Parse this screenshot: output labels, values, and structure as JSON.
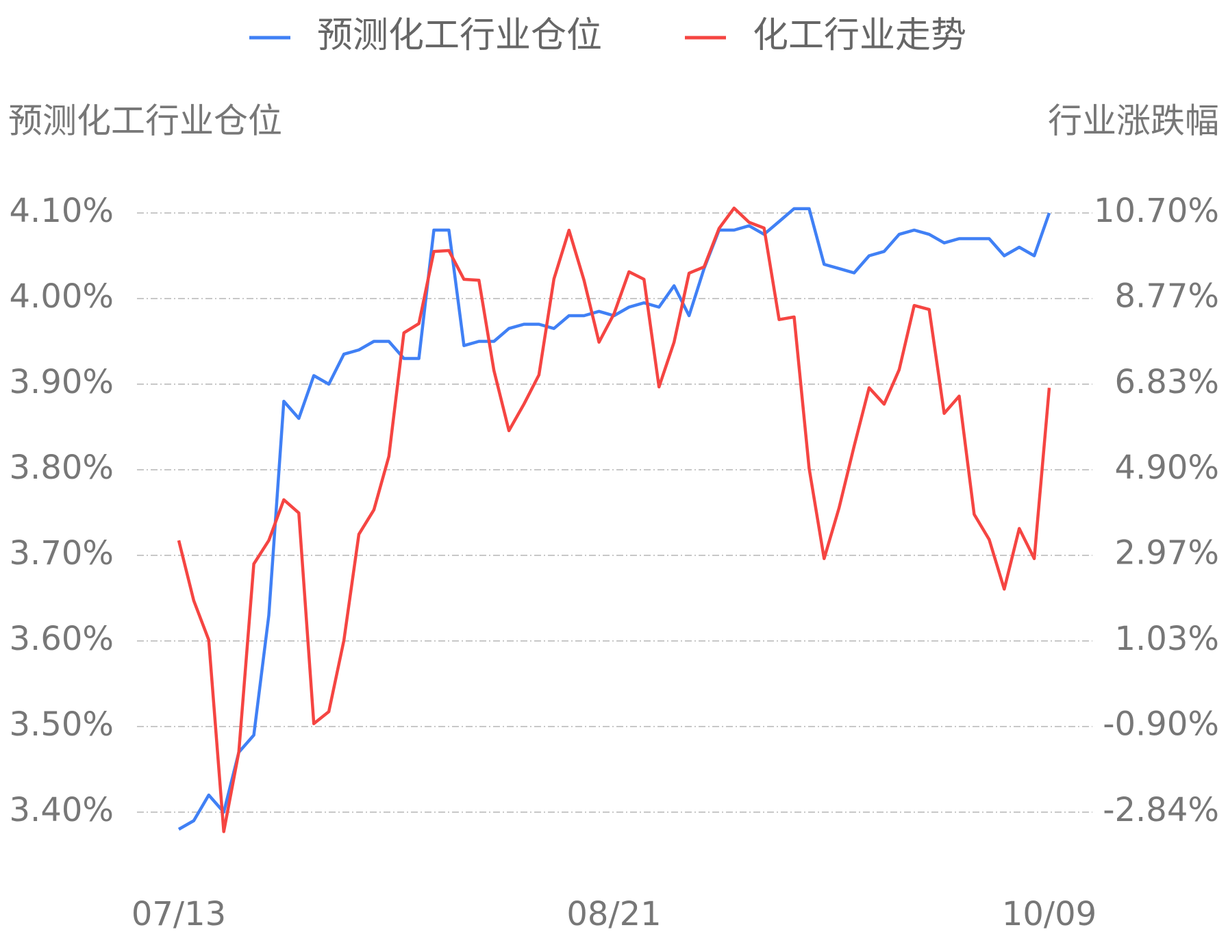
{
  "chart_data": {
    "type": "line",
    "y_label": "预测化工行业仓位",
    "y2_label": "行业涨跌幅",
    "categories": [
      "07/13",
      null,
      null,
      null,
      null,
      null,
      null,
      null,
      null,
      null,
      null,
      null,
      null,
      null,
      null,
      null,
      null,
      null,
      null,
      null,
      null,
      null,
      null,
      null,
      null,
      null,
      null,
      null,
      null,
      "08/21",
      null,
      null,
      null,
      null,
      null,
      null,
      null,
      null,
      null,
      null,
      null,
      null,
      null,
      null,
      null,
      null,
      null,
      null,
      null,
      null,
      null,
      null,
      null,
      null,
      null,
      null,
      null,
      null,
      "10/09"
    ],
    "series": [
      {
        "name": "预测化工行业仓位",
        "color": "#4080f5",
        "values": [
          3.38,
          3.39,
          3.42,
          3.4,
          3.47,
          3.49,
          3.63,
          3.88,
          3.86,
          3.91,
          3.9,
          3.935,
          3.94,
          3.95,
          3.95,
          3.93,
          3.93,
          4.08,
          4.08,
          3.945,
          3.95,
          3.95,
          3.965,
          3.97,
          3.97,
          3.965,
          3.98,
          3.98,
          3.985,
          3.98,
          3.99,
          3.995,
          3.99,
          4.015,
          3.98,
          4.035,
          4.08,
          4.08,
          4.085,
          4.075,
          4.09,
          4.105,
          4.105,
          4.04,
          4.035,
          4.03,
          4.05,
          4.055,
          4.075,
          4.08,
          4.075,
          4.065,
          4.07,
          4.07,
          4.07,
          4.05,
          4.06,
          4.05,
          4.1
        ]
      },
      {
        "name": "化工行业走势",
        "color": "#f54542",
        "axis": "y2",
        "values": [
          3.3,
          1.94,
          1.05,
          -3.28,
          -1.48,
          2.77,
          3.3,
          4.22,
          3.92,
          -0.84,
          -0.57,
          1.04,
          3.44,
          3.99,
          5.2,
          7.99,
          8.2,
          9.83,
          9.85,
          9.2,
          9.18,
          7.14,
          5.78,
          6.38,
          7.04,
          9.21,
          10.31,
          9.18,
          7.78,
          8.42,
          9.37,
          9.2,
          6.77,
          7.78,
          9.34,
          9.48,
          10.35,
          10.81,
          10.49,
          10.36,
          8.29,
          8.35,
          4.93,
          2.89,
          4.04,
          5.43,
          6.75,
          6.38,
          7.16,
          8.61,
          8.52,
          6.17,
          6.56,
          3.89,
          3.32,
          2.2,
          3.57,
          2.89,
          6.75
        ]
      }
    ],
    "ylim": [
      3.4,
      4.1
    ],
    "yticks": [
      {
        "value": 3.4,
        "label": "3.40%"
      },
      {
        "value": 3.5,
        "label": "3.50%"
      },
      {
        "value": 3.6,
        "label": "3.60%"
      },
      {
        "value": 3.7,
        "label": "3.70%"
      },
      {
        "value": 3.8,
        "label": "3.80%"
      },
      {
        "value": 3.9,
        "label": "3.90%"
      },
      {
        "value": 4.0,
        "label": "4.00%"
      },
      {
        "value": 4.1,
        "label": "4.10%"
      }
    ],
    "y2lim": [
      -2.84,
      10.7
    ],
    "y2ticks": [
      {
        "value": -2.84,
        "label": "-2.84%"
      },
      {
        "value": -0.9,
        "label": "-0.90%"
      },
      {
        "value": 1.03,
        "label": "1.03%"
      },
      {
        "value": 2.97,
        "label": "2.97%"
      },
      {
        "value": 4.9,
        "label": "4.90%"
      },
      {
        "value": 6.83,
        "label": "6.83%"
      },
      {
        "value": 8.77,
        "label": "8.77%"
      },
      {
        "value": 10.7,
        "label": "10.70%"
      }
    ],
    "grid": true,
    "legend": "top"
  }
}
